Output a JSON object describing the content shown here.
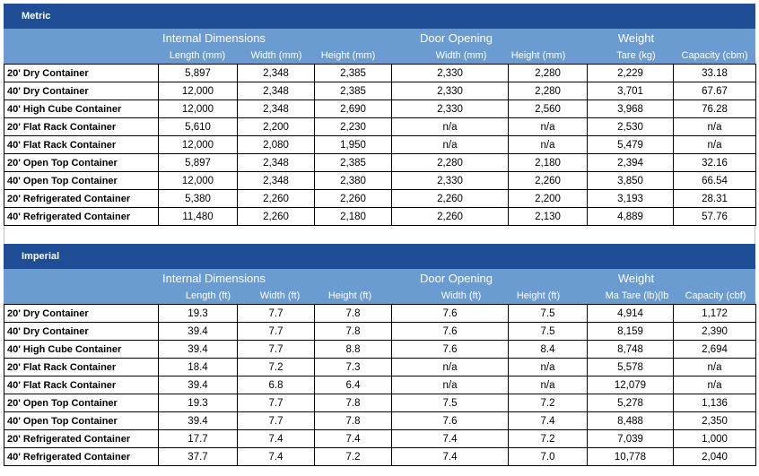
{
  "metric": {
    "title": "Metric",
    "group_headers": {
      "internal": "Internal Dimensions",
      "door": "Door Opening",
      "weight": "Weight"
    },
    "col_headers": {
      "length": "Length (mm)",
      "width": "Width (mm)",
      "height": "Height (mm)",
      "door_width": "Width (mm)",
      "door_height": "Height (mm)",
      "tare": "Tare (kg)",
      "capacity": "Capacity (cbm)"
    },
    "rows": [
      [
        "20' Dry Container",
        "5,897",
        "2,348",
        "2,385",
        "2,330",
        "2,280",
        "2,229",
        "33.18"
      ],
      [
        "40' Dry Container",
        "12,000",
        "2,348",
        "2,385",
        "2,330",
        "2,280",
        "3,701",
        "67.67"
      ],
      [
        "40' High Cube Container",
        "12,000",
        "2,348",
        "2,690",
        "2,330",
        "2,560",
        "3,968",
        "76.28"
      ],
      [
        "20' Flat Rack Container",
        "5,610",
        "2,200",
        "2,230",
        "n/a",
        "n/a",
        "2,530",
        "n/a"
      ],
      [
        "40' Flat Rack Container",
        "12,000",
        "2,080",
        "1,950",
        "n/a",
        "n/a",
        "5,479",
        "n/a"
      ],
      [
        "20' Open Top Container",
        "5,897",
        "2,348",
        "2,385",
        "2,280",
        "2,180",
        "2,394",
        "32.16"
      ],
      [
        "40' Open Top Container",
        "12,000",
        "2,348",
        "2,380",
        "2,330",
        "2,260",
        "3,850",
        "66.54"
      ],
      [
        "20' Refrigerated Container",
        "5,380",
        "2,260",
        "2,260",
        "2,260",
        "2,200",
        "3,193",
        "28.31"
      ],
      [
        "40' Refrigerated Container",
        "11,480",
        "2,260",
        "2,180",
        "2,260",
        "2,130",
        "4,889",
        "57.76"
      ]
    ]
  },
  "imperial": {
    "title": "Imperial",
    "group_headers": {
      "internal": "Internal Dimensions",
      "door": "Door Opening",
      "weight": "Weight"
    },
    "col_headers": {
      "length": "Length (ft)",
      "width": "Width (ft)",
      "height": "Height (ft)",
      "door_width": "Width (ft)",
      "door_height": "Height (ft)",
      "tare": "Ma Tare (lb)(lb",
      "capacity": "Capacity (cbf)"
    },
    "rows": [
      [
        "20' Dry Container",
        "19.3",
        "7.7",
        "7.8",
        "7.6",
        "7.5",
        "4,914",
        "1,172"
      ],
      [
        "40' Dry Container",
        "39.4",
        "7.7",
        "7.8",
        "7.6",
        "7.5",
        "8,159",
        "2,390"
      ],
      [
        "40' High Cube Container",
        "39.4",
        "7.7",
        "8.8",
        "7.6",
        "8.4",
        "8,748",
        "2,694"
      ],
      [
        "20' Flat Rack Container",
        "18.4",
        "7.2",
        "7.3",
        "n/a",
        "n/a",
        "5,578",
        "n/a"
      ],
      [
        "40' Flat Rack Container",
        "39.4",
        "6.8",
        "6.4",
        "n/a",
        "n/a",
        "12,079",
        "n/a"
      ],
      [
        "20' Open Top Container",
        "19.3",
        "7.7",
        "7.8",
        "7.5",
        "7.2",
        "5,278",
        "1,136"
      ],
      [
        "40' Open Top Container",
        "39.4",
        "7.7",
        "7.8",
        "7.6",
        "7.4",
        "8,488",
        "2,350"
      ],
      [
        "20' Refrigerated Container",
        "17.7",
        "7.4",
        "7.4",
        "7.4",
        "7.2",
        "7,039",
        "1,000"
      ],
      [
        "40' Refrigerated Container",
        "37.7",
        "7.4",
        "7.2",
        "7.4",
        "7.0",
        "10,778",
        "2,040"
      ]
    ]
  }
}
